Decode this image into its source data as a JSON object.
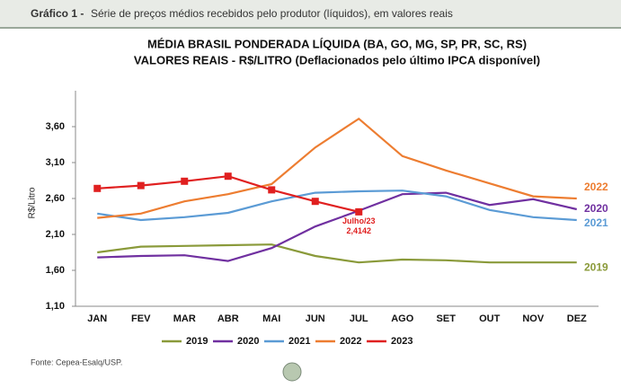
{
  "header": {
    "label": "Gráfico 1 -",
    "text": "Série de preços médios recebidos pelo produtor (líquidos), em valores reais"
  },
  "source": "Fonte: Cepea-Esalq/USP.",
  "chart_data": {
    "type": "line",
    "title": "MÉDIA BRASIL PONDERADA LÍQUIDA (BA, GO, MG, SP, PR, SC, RS)",
    "subtitle": "VALORES REAIS - R$/LITRO (Deflacionados pelo último IPCA disponível)",
    "y_label": "R$/Litro",
    "categories": [
      "JAN",
      "FEV",
      "MAR",
      "ABR",
      "MAI",
      "JUN",
      "JUL",
      "AGO",
      "SET",
      "OUT",
      "NOV",
      "DEZ"
    ],
    "ylim": [
      1.1,
      4.1
    ],
    "yticks": [
      {
        "value": 1.1,
        "label": "1,10"
      },
      {
        "value": 1.6,
        "label": "1,60"
      },
      {
        "value": 2.1,
        "label": "2,10"
      },
      {
        "value": 2.6,
        "label": "2,60"
      },
      {
        "value": 3.1,
        "label": "3,10"
      },
      {
        "value": 3.6,
        "label": "3,60"
      }
    ],
    "grid": false,
    "legend": "bottom",
    "annotation": "Julho/23",
    "series": [
      {
        "name": "2019",
        "color": "#8a9a3a",
        "values": [
          1.85,
          1.93,
          1.94,
          1.95,
          1.96,
          1.8,
          1.71,
          1.75,
          1.74,
          1.71,
          1.71,
          1.71
        ]
      },
      {
        "name": "2020",
        "color": "#7030a0",
        "values": [
          1.78,
          1.8,
          1.81,
          1.73,
          1.91,
          2.21,
          2.43,
          2.66,
          2.68,
          2.51,
          2.59,
          2.45
        ]
      },
      {
        "name": "2021",
        "color": "#5b9bd5",
        "values": [
          2.39,
          2.3,
          2.34,
          2.4,
          2.56,
          2.68,
          2.7,
          2.71,
          2.63,
          2.44,
          2.34,
          2.3
        ]
      },
      {
        "name": "2022",
        "color": "#ed7d31",
        "values": [
          2.33,
          2.39,
          2.56,
          2.66,
          2.8,
          3.31,
          3.71,
          3.19,
          2.99,
          2.81,
          2.63,
          2.6
        ]
      },
      {
        "name": "2023",
        "color": "#e02020",
        "markers": true,
        "values": [
          2.74,
          2.78,
          2.84,
          2.91,
          2.72,
          2.56,
          2.4142,
          null,
          null,
          null,
          null,
          null
        ],
        "value_labels": [
          null,
          null,
          null,
          null,
          null,
          null,
          "2,4142",
          null,
          null,
          null,
          null,
          null
        ]
      }
    ]
  }
}
